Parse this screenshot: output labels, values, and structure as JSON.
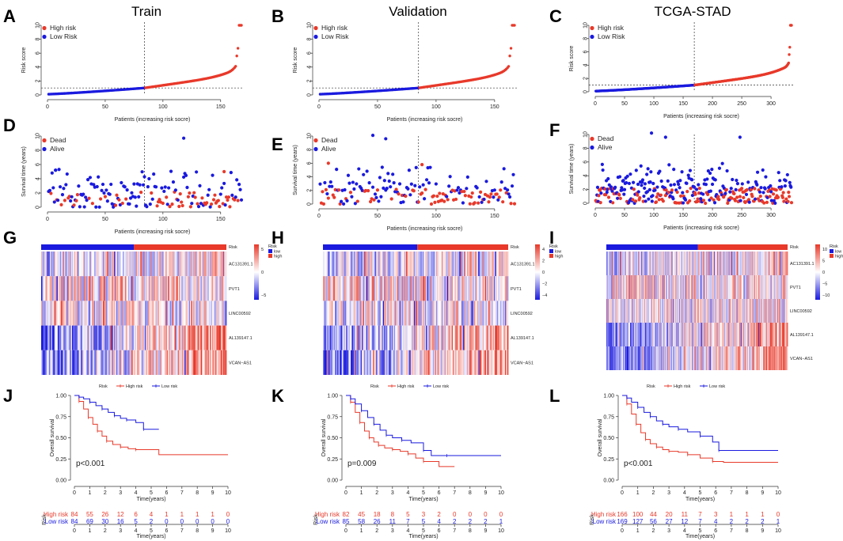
{
  "panel_letters": [
    "A",
    "B",
    "C",
    "D",
    "E",
    "F",
    "G",
    "H",
    "I",
    "J",
    "K",
    "L"
  ],
  "column_titles": [
    "Train",
    "Validation",
    "TCGA-STAD"
  ],
  "colors": {
    "high": "#e8392a",
    "low": "#1a1adf",
    "dead": "#e8392a",
    "alive": "#1a1adf",
    "heat_high": "#e8392a",
    "heat_low": "#1a1adf"
  },
  "chart_data": [
    {
      "panel": "A",
      "type": "scatter",
      "title": "Train",
      "xlabel": "Patients (increasing risk socre)",
      "ylabel": "Risk score",
      "n": 168,
      "cutoff_index": 84,
      "cutoff_value": 1.0,
      "xlim": [
        0,
        168
      ],
      "ylim": [
        0,
        10
      ],
      "xticks": [
        0,
        50,
        100,
        150
      ],
      "yticks": [
        0,
        2,
        4,
        6,
        8,
        10
      ],
      "legend": [
        {
          "label": "High risk",
          "key": "high"
        },
        {
          "label": "Low Risk",
          "key": "low"
        }
      ],
      "series": [
        {
          "name": "Low Risk",
          "x_range": [
            1,
            84
          ],
          "y_range": [
            0.1,
            1.0
          ]
        },
        {
          "name": "High risk",
          "x_range": [
            85,
            168
          ],
          "y_range": [
            1.0,
            10.0
          ]
        }
      ]
    },
    {
      "panel": "B",
      "type": "scatter",
      "title": "Validation",
      "xlabel": "Patients (increasing risk socre)",
      "ylabel": "Risk score",
      "n": 167,
      "cutoff_index": 85,
      "cutoff_value": 1.0,
      "xlim": [
        0,
        167
      ],
      "ylim": [
        0,
        10
      ],
      "xticks": [
        0,
        50,
        100,
        150
      ],
      "yticks": [
        0,
        2,
        4,
        6,
        8,
        10
      ],
      "legend": [
        {
          "label": "High risk",
          "key": "high"
        },
        {
          "label": "Low Risk",
          "key": "low"
        }
      ],
      "series": [
        {
          "name": "Low Risk",
          "x_range": [
            1,
            85
          ],
          "y_range": [
            0.2,
            1.0
          ]
        },
        {
          "name": "High risk",
          "x_range": [
            86,
            167
          ],
          "y_range": [
            1.0,
            10.0
          ]
        }
      ]
    },
    {
      "panel": "C",
      "type": "scatter",
      "title": "TCGA-STAD",
      "xlabel": "Patients (increasing risk socre)",
      "ylabel": "Risk score",
      "n": 335,
      "cutoff_index": 169,
      "cutoff_value": 1.0,
      "xlim": [
        0,
        335
      ],
      "ylim": [
        0,
        10
      ],
      "xticks": [
        0,
        50,
        100,
        150,
        200,
        250,
        300
      ],
      "yticks": [
        0,
        2,
        4,
        6,
        8,
        10
      ],
      "legend": [
        {
          "label": "High risk",
          "key": "high"
        },
        {
          "label": "Low Risk",
          "key": "low"
        }
      ],
      "series": [
        {
          "name": "Low Risk",
          "x_range": [
            1,
            169
          ],
          "y_range": [
            0.1,
            1.0
          ]
        },
        {
          "name": "High risk",
          "x_range": [
            170,
            335
          ],
          "y_range": [
            1.0,
            10.0
          ]
        }
      ]
    },
    {
      "panel": "D",
      "type": "scatter",
      "xlabel": "Patients (increasing risk socre)",
      "ylabel": "Survival time (years)",
      "n": 168,
      "cutoff_index": 84,
      "xlim": [
        0,
        168
      ],
      "ylim": [
        0,
        10
      ],
      "xticks": [
        0,
        50,
        100,
        150
      ],
      "yticks": [
        0,
        2,
        4,
        6,
        8,
        10
      ],
      "legend": [
        {
          "label": "Dead",
          "key": "dead"
        },
        {
          "label": "Alive",
          "key": "alive"
        }
      ],
      "outliers": [
        {
          "x": 118,
          "y": 9.7,
          "status": "alive"
        },
        {
          "x": 153,
          "y": 5.0,
          "status": "dead"
        },
        {
          "x": 7,
          "y": 5.2,
          "status": "alive"
        }
      ]
    },
    {
      "panel": "E",
      "type": "scatter",
      "xlabel": "Patients (increasing risk socre)",
      "ylabel": "Survival time (years)",
      "n": 167,
      "cutoff_index": 85,
      "xlim": [
        0,
        167
      ],
      "ylim": [
        0,
        10
      ],
      "xticks": [
        0,
        50,
        100,
        150
      ],
      "yticks": [
        0,
        2,
        4,
        6,
        8,
        10
      ],
      "legend": [
        {
          "label": "Dead",
          "key": "dead"
        },
        {
          "label": "Alive",
          "key": "alive"
        }
      ],
      "outliers": [
        {
          "x": 46,
          "y": 10.1,
          "status": "alive"
        },
        {
          "x": 57,
          "y": 9.6,
          "status": "alive"
        },
        {
          "x": 88,
          "y": 5.8,
          "status": "dead"
        },
        {
          "x": 8,
          "y": 6.0,
          "status": "dead"
        }
      ]
    },
    {
      "panel": "F",
      "type": "scatter",
      "xlabel": "Patients (increasing risk socre)",
      "ylabel": "Survival time (years)",
      "n": 335,
      "cutoff_index": 169,
      "xlim": [
        0,
        335
      ],
      "ylim": [
        0,
        10
      ],
      "xticks": [
        0,
        50,
        100,
        150,
        200,
        250,
        300
      ],
      "yticks": [
        0,
        2,
        4,
        6,
        8,
        10
      ],
      "legend": [
        {
          "label": "Dead",
          "key": "dead"
        },
        {
          "label": "Alive",
          "key": "alive"
        }
      ],
      "outliers": [
        {
          "x": 96,
          "y": 10.2,
          "status": "alive"
        },
        {
          "x": 120,
          "y": 9.6,
          "status": "alive"
        },
        {
          "x": 247,
          "y": 9.6,
          "status": "alive"
        }
      ]
    },
    {
      "panel": "G",
      "type": "heatmap",
      "genes": [
        "AC131391.1",
        "PVT1",
        "LINC00592",
        "AL139147.1",
        "VCAN−AS1"
      ],
      "n": 168,
      "cutoff_index": 84,
      "legend_title": "Risk",
      "legend_items": [
        "low",
        "high"
      ],
      "scale_ticks": [
        "5",
        "0",
        "−5"
      ],
      "scale": [
        -5,
        5
      ]
    },
    {
      "panel": "H",
      "type": "heatmap",
      "genes": [
        "AC131391.1",
        "PVT1",
        "LINC00592",
        "AL139147.1",
        "VCAN−AS1"
      ],
      "n": 167,
      "cutoff_index": 85,
      "legend_title": "Risk",
      "legend_items": [
        "low",
        "high"
      ],
      "scale_ticks": [
        "4",
        "2",
        "0",
        "−2",
        "−4"
      ],
      "scale": [
        -4,
        4
      ]
    },
    {
      "panel": "I",
      "type": "heatmap",
      "genes": [
        "AC131391.1",
        "PVT1",
        "LINC00592",
        "AL139147.1",
        "VCAN−AS1"
      ],
      "n": 335,
      "cutoff_index": 169,
      "legend_title": "Risk",
      "legend_items": [
        "low",
        "high"
      ],
      "scale_ticks": [
        "10",
        "5",
        "0",
        "−5",
        "−10"
      ],
      "scale": [
        -10,
        10
      ]
    },
    {
      "panel": "J",
      "type": "line",
      "xlabel": "Time(years)",
      "ylabel": "Overall survival",
      "pvalue": "p<0.001",
      "xlim": [
        0,
        10
      ],
      "ylim": [
        0,
        1
      ],
      "xticks": [
        0,
        1,
        2,
        3,
        4,
        5,
        6,
        7,
        8,
        9,
        10
      ],
      "yticks": [
        "0.00",
        "0.25",
        "0.50",
        "0.75",
        "1.00"
      ],
      "legend_title": "Risk",
      "legend": [
        "High risk",
        "Low risk"
      ],
      "series": [
        {
          "name": "High risk",
          "x": [
            0,
            0.3,
            0.6,
            0.9,
            1.2,
            1.5,
            1.8,
            2.1,
            2.5,
            3.0,
            3.5,
            4.0,
            5.5,
            10.0
          ],
          "values": [
            1.0,
            0.93,
            0.84,
            0.74,
            0.66,
            0.58,
            0.52,
            0.46,
            0.42,
            0.39,
            0.37,
            0.36,
            0.3,
            0.3
          ]
        },
        {
          "name": "Low risk",
          "x": [
            0,
            0.3,
            0.6,
            1.0,
            1.4,
            1.8,
            2.2,
            2.6,
            3.0,
            3.4,
            4.0,
            4.5,
            5.5
          ],
          "values": [
            1.0,
            0.98,
            0.96,
            0.92,
            0.88,
            0.84,
            0.8,
            0.76,
            0.73,
            0.71,
            0.68,
            0.6,
            0.6
          ]
        }
      ],
      "risk_table": {
        "title": "Risk",
        "rows": [
          {
            "label": "High risk",
            "values": [
              84,
              55,
              26,
              12,
              6,
              4,
              1,
              1,
              1,
              1,
              0
            ]
          },
          {
            "label": "Low risk",
            "values": [
              84,
              69,
              30,
              16,
              5,
              2,
              0,
              0,
              0,
              0,
              0
            ]
          }
        ],
        "xticks": [
          0,
          1,
          2,
          3,
          4,
          5,
          6,
          7,
          8,
          9,
          10
        ],
        "xlabel": "Time(years)"
      }
    },
    {
      "panel": "K",
      "type": "line",
      "xlabel": "Time(years)",
      "ylabel": "Overall survival",
      "pvalue": "p=0.009",
      "xlim": [
        0,
        10
      ],
      "ylim": [
        0,
        1
      ],
      "xticks": [
        0,
        1,
        2,
        3,
        4,
        5,
        6,
        7,
        8,
        9,
        10
      ],
      "yticks": [
        "0.00",
        "0.25",
        "0.50",
        "0.75",
        "1.00"
      ],
      "legend_title": "Risk",
      "legend": [
        "High risk",
        "Low risk"
      ],
      "series": [
        {
          "name": "High risk",
          "x": [
            0,
            0.3,
            0.6,
            0.9,
            1.2,
            1.5,
            1.8,
            2.1,
            2.5,
            3.0,
            3.5,
            4.0,
            4.5,
            5.0,
            6.0,
            7.0
          ],
          "values": [
            1.0,
            0.92,
            0.8,
            0.68,
            0.58,
            0.5,
            0.45,
            0.41,
            0.38,
            0.36,
            0.34,
            0.31,
            0.26,
            0.22,
            0.16,
            0.16
          ]
        },
        {
          "name": "Low risk",
          "x": [
            0,
            0.3,
            0.6,
            1.0,
            1.4,
            1.8,
            2.2,
            2.6,
            3.0,
            3.6,
            4.2,
            5.0,
            5.5,
            6.5,
            10.0
          ],
          "values": [
            1.0,
            0.96,
            0.9,
            0.82,
            0.74,
            0.66,
            0.59,
            0.53,
            0.5,
            0.47,
            0.44,
            0.35,
            0.29,
            0.29,
            0.29
          ]
        }
      ],
      "risk_table": {
        "title": "Risk",
        "rows": [
          {
            "label": "High risk",
            "values": [
              82,
              45,
              18,
              8,
              5,
              3,
              2,
              0,
              0,
              0,
              0
            ]
          },
          {
            "label": "Low risk",
            "values": [
              85,
              58,
              26,
              11,
              7,
              5,
              4,
              2,
              2,
              2,
              1
            ]
          }
        ],
        "xticks": [
          0,
          1,
          2,
          3,
          4,
          5,
          6,
          7,
          8,
          9,
          10
        ],
        "xlabel": "Time(years)"
      }
    },
    {
      "panel": "L",
      "type": "line",
      "xlabel": "Time(years)",
      "ylabel": "Overall survival",
      "pvalue": "p<0.001",
      "xlim": [
        0,
        10
      ],
      "ylim": [
        0,
        1
      ],
      "xticks": [
        0,
        1,
        2,
        3,
        4,
        5,
        6,
        7,
        8,
        9,
        10
      ],
      "yticks": [
        "0.00",
        "0.25",
        "0.50",
        "0.75",
        "1.00"
      ],
      "legend_title": "Risk",
      "legend": [
        "High risk",
        "Low risk"
      ],
      "series": [
        {
          "name": "High risk",
          "x": [
            0,
            0.3,
            0.6,
            0.9,
            1.2,
            1.5,
            1.8,
            2.2,
            2.6,
            3.0,
            3.6,
            4.2,
            5.0,
            5.8,
            6.5,
            10.0
          ],
          "values": [
            1.0,
            0.9,
            0.78,
            0.66,
            0.56,
            0.48,
            0.43,
            0.39,
            0.36,
            0.34,
            0.33,
            0.3,
            0.26,
            0.22,
            0.21,
            0.21
          ]
        },
        {
          "name": "Low risk",
          "x": [
            0,
            0.3,
            0.6,
            1.0,
            1.4,
            1.8,
            2.2,
            2.6,
            3.0,
            3.6,
            4.2,
            5.0,
            5.8,
            6.2,
            10.0
          ],
          "values": [
            1.0,
            0.97,
            0.92,
            0.86,
            0.8,
            0.75,
            0.7,
            0.66,
            0.63,
            0.6,
            0.57,
            0.52,
            0.45,
            0.35,
            0.35
          ]
        }
      ],
      "risk_table": {
        "title": "Risk",
        "rows": [
          {
            "label": "High risk",
            "values": [
              166,
              100,
              44,
              20,
              11,
              7,
              3,
              1,
              1,
              1,
              0
            ]
          },
          {
            "label": "Low risk",
            "values": [
              169,
              127,
              56,
              27,
              12,
              7,
              4,
              2,
              2,
              2,
              1
            ]
          }
        ],
        "xticks": [
          0,
          1,
          2,
          3,
          4,
          5,
          6,
          7,
          8,
          9,
          10
        ],
        "xlabel": "Time(years)"
      }
    }
  ]
}
